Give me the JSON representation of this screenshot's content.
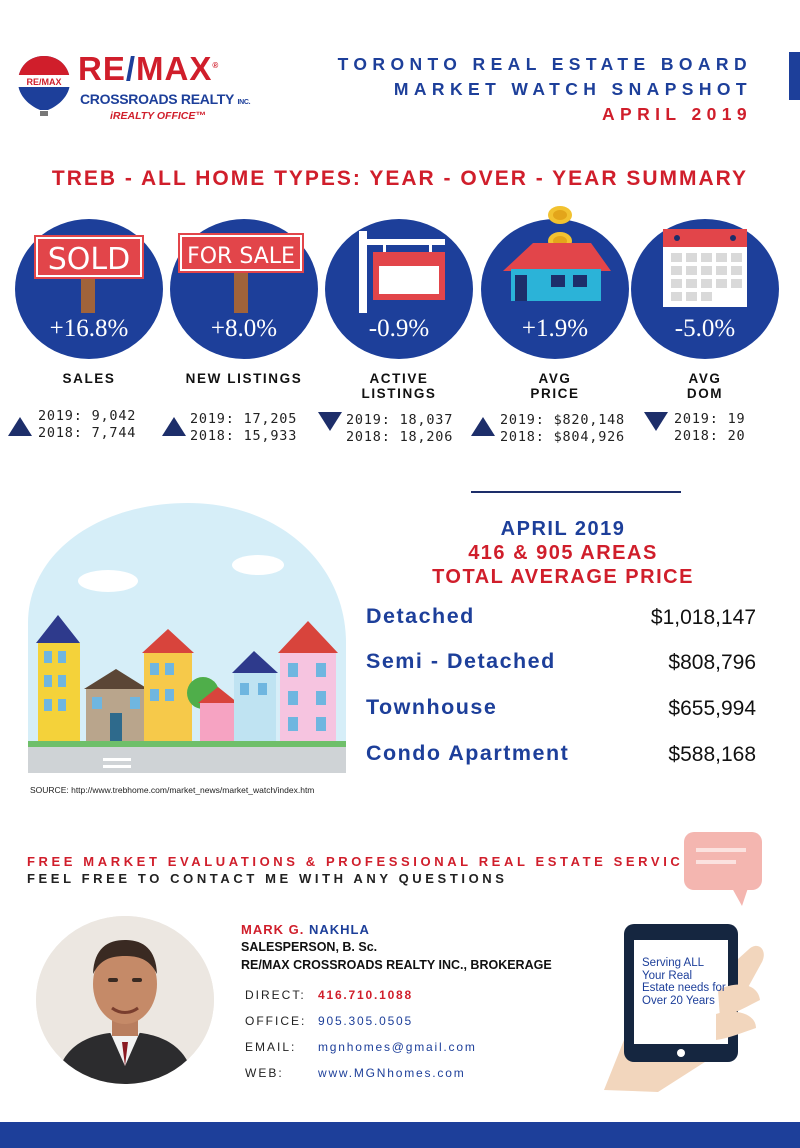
{
  "logo": {
    "brand_left": "RE",
    "brand_slash": "/",
    "brand_right": "MAX",
    "tm": "®",
    "company": "CROSSROADS REALTY",
    "company_suffix": "INC.",
    "office": "iREALTY OFFICE™",
    "balloon_text": "RE/MAX"
  },
  "header": {
    "line1": "TORONTO REAL ESTATE BOARD",
    "line2": "MARKET WATCH SNAPSHOT",
    "line3": "APRIL 2019"
  },
  "summary_title": "TREB - ALL HOME TYPES:  YEAR - OVER - YEAR  SUMMARY",
  "stats": [
    {
      "label": "SALES",
      "pct": "+16.8%",
      "direction": "up",
      "y2019": "2019: 9,042",
      "y2018": "2018: 7,744",
      "icon": "sold-sign-icon",
      "icon_text": "SOLD"
    },
    {
      "label": "NEW LISTINGS",
      "pct": "+8.0%",
      "direction": "up",
      "y2019": "2019: 17,205",
      "y2018": "2018: 15,933",
      "icon": "for-sale-sign-icon",
      "icon_text": "FOR SALE"
    },
    {
      "label": "ACTIVE LISTINGS",
      "pct": "-0.9%",
      "direction": "down",
      "y2019": "2019: 18,037",
      "y2018": "2018: 18,206",
      "icon": "blank-sign-icon"
    },
    {
      "label": "AVG PRICE",
      "pct": "+1.9%",
      "direction": "up",
      "y2019": "2019: $820,148",
      "y2018": "2018: $804,926",
      "icon": "house-coins-icon"
    },
    {
      "label": "AVG DOM",
      "pct": "-5.0%",
      "direction": "down",
      "y2019": "2019: 19",
      "y2018": "2018: 20",
      "icon": "calendar-icon"
    }
  ],
  "price_section": {
    "line1": "APRIL 2019",
    "line2": "416 & 905 AREAS",
    "line3": "TOTAL AVERAGE PRICE",
    "rows": [
      {
        "label": "Detached",
        "value": "$1,018,147"
      },
      {
        "label": "Semi - Detached",
        "value": "$808,796"
      },
      {
        "label": "Townhouse",
        "value": "$655,994"
      },
      {
        "label": "Condo Apartment",
        "value": "$588,168"
      }
    ]
  },
  "source": "SOURCE:  http://www.trebhome.com/market_news/market_watch/index.htm",
  "cta": {
    "line1": "FREE MARKET EVALUATIONS & PROFESSIONAL REAL ESTATE SERVICES.",
    "line2": "FEEL FREE TO CONTACT ME WITH ANY QUESTIONS"
  },
  "agent": {
    "name_first": "MARK  G.",
    "name_last": "NAKHLA",
    "title": "SALESPERSON, B. Sc.",
    "brokerage": "RE/MAX CROSSROADS REALTY INC., BROKERAGE",
    "contacts": [
      {
        "label": "DIRECT:",
        "value": "416.710.1088"
      },
      {
        "label": "OFFICE:",
        "value": "905.305.0505"
      },
      {
        "label": "EMAIL:",
        "value": "mgnhomes@gmail.com"
      },
      {
        "label": "WEB:",
        "value": "www.MGNhomes.com"
      }
    ]
  },
  "phone_message": "Serving ALL Your Real Estate needs for Over 20 Years",
  "colors": {
    "brand_blue": "#1d3f9a",
    "brand_red": "#d01e2b",
    "navy": "#1d2e6a"
  }
}
